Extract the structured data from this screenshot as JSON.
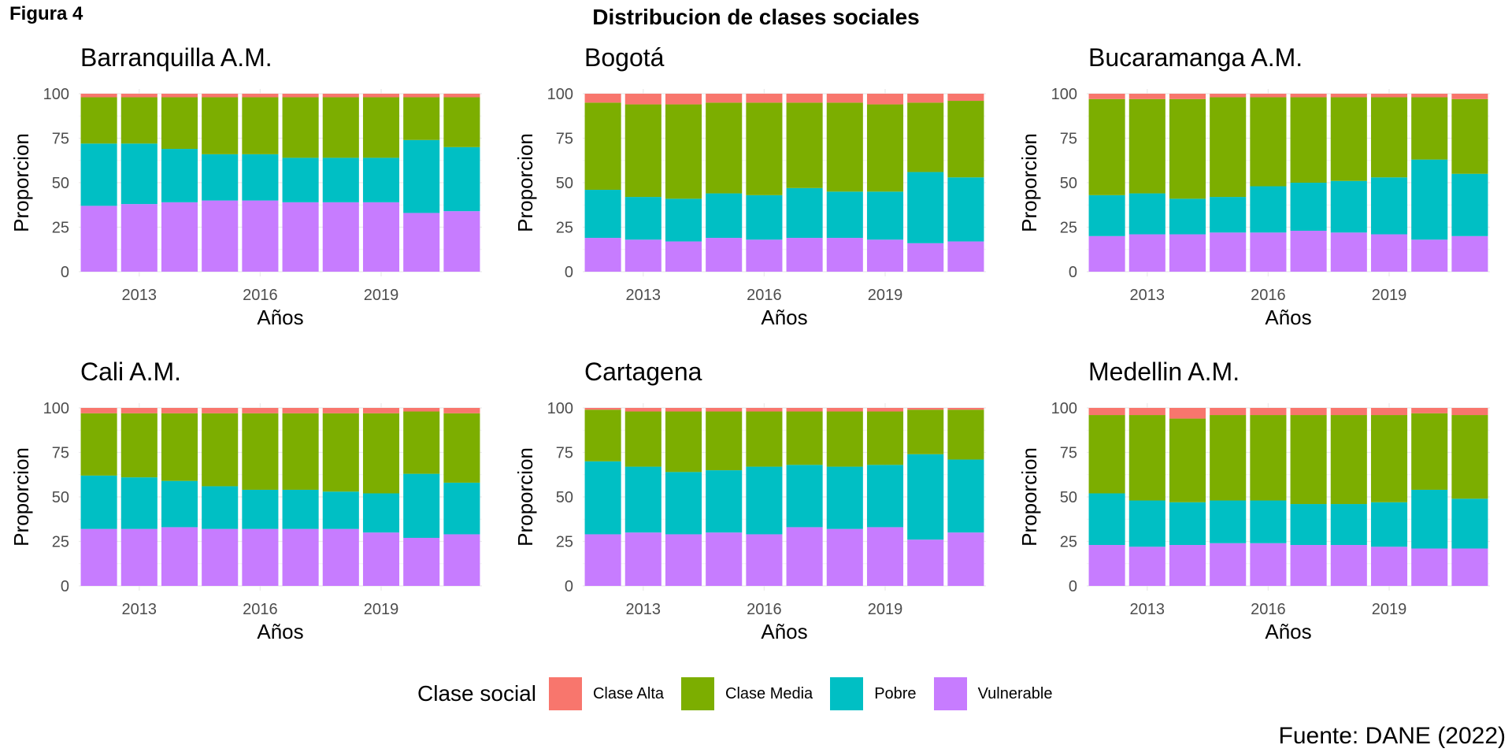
{
  "figure_label": "Figura 4",
  "source": "Fuente: DANE (2022)",
  "chart_data": {
    "type": "bar",
    "stacked": true,
    "title": "Distribucion de clases sociales",
    "xlabel": "Años",
    "ylabel": "Proporcion",
    "ylim": [
      0,
      100
    ],
    "yticks": [
      0,
      25,
      50,
      75,
      100
    ],
    "xticks": [
      2013,
      2016,
      2019
    ],
    "x": [
      2012,
      2013,
      2014,
      2015,
      2016,
      2017,
      2018,
      2019,
      2020,
      2021
    ],
    "legend": {
      "title": "Clase social",
      "position": "bottom"
    },
    "grid": true,
    "series_order_bottom_to_top": [
      "Vulnerable",
      "Pobre",
      "Clase Media",
      "Clase Alta"
    ],
    "colors": {
      "Clase Alta": "#F8766D",
      "Clase Media": "#7CAE00",
      "Pobre": "#00BFC4",
      "Vulnerable": "#C77CFF"
    },
    "panels": [
      {
        "name": "Barranquilla A.M.",
        "series": [
          {
            "name": "Vulnerable",
            "values": [
              37,
              38,
              39,
              40,
              40,
              39,
              39,
              39,
              33,
              34
            ]
          },
          {
            "name": "Pobre",
            "values": [
              35,
              34,
              30,
              26,
              26,
              25,
              25,
              25,
              41,
              36
            ]
          },
          {
            "name": "Clase Media",
            "values": [
              26,
              26,
              29,
              32,
              32,
              34,
              34,
              34,
              24,
              28
            ]
          },
          {
            "name": "Clase Alta",
            "values": [
              2,
              2,
              2,
              2,
              2,
              2,
              2,
              2,
              2,
              2
            ]
          }
        ]
      },
      {
        "name": "Bogotá",
        "series": [
          {
            "name": "Vulnerable",
            "values": [
              19,
              18,
              17,
              19,
              18,
              19,
              19,
              18,
              16,
              17
            ]
          },
          {
            "name": "Pobre",
            "values": [
              27,
              24,
              24,
              25,
              25,
              28,
              26,
              27,
              40,
              36
            ]
          },
          {
            "name": "Clase Media",
            "values": [
              49,
              52,
              53,
              51,
              52,
              48,
              50,
              49,
              39,
              43
            ]
          },
          {
            "name": "Clase Alta",
            "values": [
              5,
              6,
              6,
              5,
              5,
              5,
              5,
              6,
              5,
              4
            ]
          }
        ]
      },
      {
        "name": "Bucaramanga A.M.",
        "series": [
          {
            "name": "Vulnerable",
            "values": [
              20,
              21,
              21,
              22,
              22,
              23,
              22,
              21,
              18,
              20
            ]
          },
          {
            "name": "Pobre",
            "values": [
              23,
              23,
              20,
              20,
              26,
              27,
              29,
              32,
              45,
              35
            ]
          },
          {
            "name": "Clase Media",
            "values": [
              54,
              53,
              56,
              56,
              50,
              48,
              47,
              45,
              35,
              42
            ]
          },
          {
            "name": "Clase Alta",
            "values": [
              3,
              3,
              3,
              2,
              2,
              2,
              2,
              2,
              2,
              3
            ]
          }
        ]
      },
      {
        "name": "Cali A.M.",
        "series": [
          {
            "name": "Vulnerable",
            "values": [
              32,
              32,
              33,
              32,
              32,
              32,
              32,
              30,
              27,
              29
            ]
          },
          {
            "name": "Pobre",
            "values": [
              30,
              29,
              26,
              24,
              22,
              22,
              21,
              22,
              36,
              29
            ]
          },
          {
            "name": "Clase Media",
            "values": [
              35,
              36,
              38,
              41,
              43,
              43,
              44,
              45,
              35,
              39
            ]
          },
          {
            "name": "Clase Alta",
            "values": [
              3,
              3,
              3,
              3,
              3,
              3,
              3,
              3,
              2,
              3
            ]
          }
        ]
      },
      {
        "name": "Cartagena",
        "series": [
          {
            "name": "Vulnerable",
            "values": [
              29,
              30,
              29,
              30,
              29,
              33,
              32,
              33,
              26,
              30
            ]
          },
          {
            "name": "Pobre",
            "values": [
              41,
              37,
              35,
              35,
              38,
              35,
              35,
              35,
              48,
              41
            ]
          },
          {
            "name": "Clase Media",
            "values": [
              29,
              31,
              34,
              33,
              31,
              30,
              31,
              30,
              25,
              28
            ]
          },
          {
            "name": "Clase Alta",
            "values": [
              1,
              2,
              2,
              2,
              2,
              2,
              2,
              2,
              1,
              1
            ]
          }
        ]
      },
      {
        "name": "Medellin A.M.",
        "series": [
          {
            "name": "Vulnerable",
            "values": [
              23,
              22,
              23,
              24,
              24,
              23,
              23,
              22,
              21,
              21
            ]
          },
          {
            "name": "Pobre",
            "values": [
              29,
              26,
              24,
              24,
              24,
              23,
              23,
              25,
              33,
              28
            ]
          },
          {
            "name": "Clase Media",
            "values": [
              44,
              48,
              47,
              48,
              48,
              50,
              50,
              49,
              43,
              47
            ]
          },
          {
            "name": "Clase Alta",
            "values": [
              4,
              4,
              6,
              4,
              4,
              4,
              4,
              4,
              3,
              4
            ]
          }
        ]
      }
    ]
  }
}
